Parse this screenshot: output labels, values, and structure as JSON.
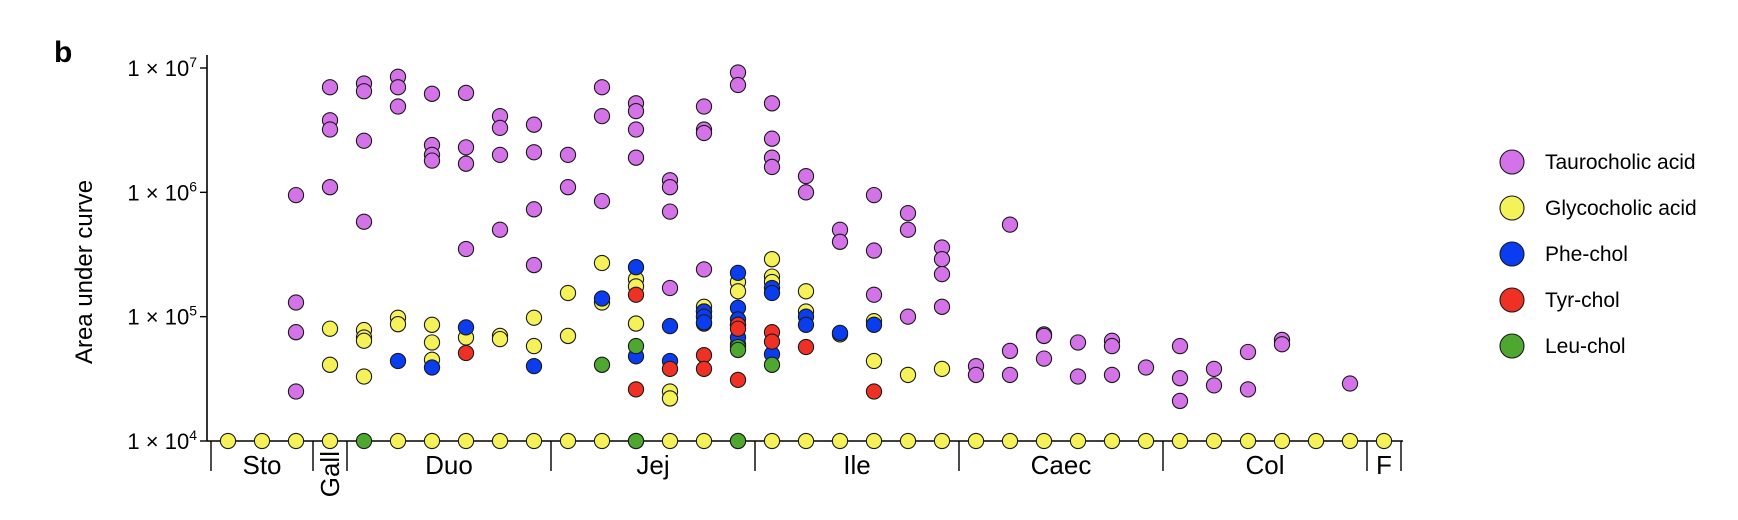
{
  "panel_letter": "b",
  "chart_data": {
    "type": "scatter",
    "ylabel": "Area under curve",
    "yscale": "log",
    "ylim": [
      10000,
      10000000
    ],
    "yticks": [
      {
        "value": 10000,
        "label": "1 × 10",
        "exp": "4"
      },
      {
        "value": 100000,
        "label": "1 × 10",
        "exp": "5"
      },
      {
        "value": 1000000,
        "label": "1 × 10",
        "exp": "6"
      },
      {
        "value": 10000000,
        "label": "1 × 10",
        "exp": "7"
      }
    ],
    "x_count": 35,
    "regions": [
      {
        "label": "Sto",
        "start": 0,
        "end": 2
      },
      {
        "label": "Gall",
        "start": 3,
        "end": 3
      },
      {
        "label": "Duo",
        "start": 4,
        "end": 9
      },
      {
        "label": "Jej",
        "start": 10,
        "end": 15
      },
      {
        "label": "Ile",
        "start": 16,
        "end": 21
      },
      {
        "label": "Caec",
        "start": 22,
        "end": 27
      },
      {
        "label": "Col",
        "start": 28,
        "end": 33
      },
      {
        "label": "F",
        "start": 34,
        "end": 34
      }
    ],
    "legend_position": "right",
    "series": [
      {
        "name": "Taurocholic acid",
        "color": "#d472e8",
        "points": [
          [
            2,
            950000
          ],
          [
            2,
            130000
          ],
          [
            2,
            75000
          ],
          [
            2,
            25000
          ],
          [
            3,
            7000000
          ],
          [
            3,
            3800000
          ],
          [
            3,
            3200000
          ],
          [
            3,
            1100000
          ],
          [
            4,
            7500000
          ],
          [
            4,
            6500000
          ],
          [
            4,
            2600000
          ],
          [
            4,
            580000
          ],
          [
            5,
            8500000
          ],
          [
            5,
            7000000
          ],
          [
            5,
            4900000
          ],
          [
            6,
            6200000
          ],
          [
            6,
            2400000
          ],
          [
            6,
            2000000
          ],
          [
            6,
            1800000
          ],
          [
            7,
            6300000
          ],
          [
            7,
            2300000
          ],
          [
            7,
            1700000
          ],
          [
            7,
            350000
          ],
          [
            8,
            4100000
          ],
          [
            8,
            3300000
          ],
          [
            8,
            2000000
          ],
          [
            8,
            500000
          ],
          [
            9,
            3500000
          ],
          [
            9,
            2100000
          ],
          [
            9,
            730000
          ],
          [
            9,
            260000
          ],
          [
            10,
            2000000
          ],
          [
            10,
            1100000
          ],
          [
            11,
            7000000
          ],
          [
            11,
            4100000
          ],
          [
            11,
            850000
          ],
          [
            12,
            5200000
          ],
          [
            12,
            4500000
          ],
          [
            12,
            3200000
          ],
          [
            12,
            1900000
          ],
          [
            13,
            1250000
          ],
          [
            13,
            1100000
          ],
          [
            13,
            700000
          ],
          [
            13,
            170000
          ],
          [
            14,
            4900000
          ],
          [
            14,
            3200000
          ],
          [
            14,
            3000000
          ],
          [
            14,
            240000
          ],
          [
            15,
            9200000
          ],
          [
            15,
            7300000
          ],
          [
            16,
            5200000
          ],
          [
            16,
            2700000
          ],
          [
            16,
            1900000
          ],
          [
            16,
            1600000
          ],
          [
            17,
            1350000
          ],
          [
            17,
            1000000
          ],
          [
            18,
            500000
          ],
          [
            18,
            400000
          ],
          [
            19,
            950000
          ],
          [
            19,
            340000
          ],
          [
            19,
            150000
          ],
          [
            20,
            680000
          ],
          [
            20,
            500000
          ],
          [
            20,
            100000
          ],
          [
            21,
            360000
          ],
          [
            21,
            290000
          ],
          [
            21,
            220000
          ],
          [
            21,
            120000
          ],
          [
            22,
            40000
          ],
          [
            22,
            34000
          ],
          [
            23,
            550000
          ],
          [
            23,
            53000
          ],
          [
            23,
            34000
          ],
          [
            24,
            72000
          ],
          [
            24,
            70000
          ],
          [
            24,
            46000
          ],
          [
            25,
            62000
          ],
          [
            25,
            33000
          ],
          [
            26,
            64000
          ],
          [
            26,
            58000
          ],
          [
            26,
            34000
          ],
          [
            27,
            39000
          ],
          [
            28,
            58000
          ],
          [
            28,
            32000
          ],
          [
            28,
            21000
          ],
          [
            29,
            38000
          ],
          [
            29,
            28000
          ],
          [
            30,
            52000
          ],
          [
            30,
            26000
          ],
          [
            31,
            65000
          ],
          [
            31,
            60000
          ],
          [
            33,
            29000
          ]
        ]
      },
      {
        "name": "Glycocholic acid",
        "color": "#f5f158",
        "points": [
          [
            0,
            10000
          ],
          [
            1,
            10000
          ],
          [
            2,
            10000
          ],
          [
            3,
            80000
          ],
          [
            3,
            41000
          ],
          [
            3,
            10000
          ],
          [
            4,
            78000
          ],
          [
            4,
            68000
          ],
          [
            4,
            64000
          ],
          [
            4,
            33000
          ],
          [
            5,
            98000
          ],
          [
            5,
            87000
          ],
          [
            5,
            10000
          ],
          [
            6,
            86000
          ],
          [
            6,
            62000
          ],
          [
            6,
            45000
          ],
          [
            6,
            10000
          ],
          [
            7,
            68000
          ],
          [
            7,
            10000
          ],
          [
            8,
            70000
          ],
          [
            8,
            66000
          ],
          [
            8,
            10000
          ],
          [
            9,
            98000
          ],
          [
            9,
            58000
          ],
          [
            9,
            10000
          ],
          [
            10,
            155000
          ],
          [
            10,
            70000
          ],
          [
            10,
            10000
          ],
          [
            11,
            270000
          ],
          [
            11,
            130000
          ],
          [
            11,
            10000
          ],
          [
            12,
            200000
          ],
          [
            12,
            175000
          ],
          [
            12,
            88000
          ],
          [
            12,
            10000
          ],
          [
            13,
            25000
          ],
          [
            13,
            22000
          ],
          [
            13,
            10000
          ],
          [
            14,
            120000
          ],
          [
            14,
            110000
          ],
          [
            14,
            100000
          ],
          [
            14,
            88000
          ],
          [
            14,
            10000
          ],
          [
            15,
            190000
          ],
          [
            15,
            160000
          ],
          [
            15,
            60000
          ],
          [
            15,
            10000
          ],
          [
            16,
            290000
          ],
          [
            16,
            210000
          ],
          [
            16,
            190000
          ],
          [
            16,
            10000
          ],
          [
            17,
            160000
          ],
          [
            17,
            110000
          ],
          [
            17,
            10000
          ],
          [
            18,
            72000
          ],
          [
            18,
            10000
          ],
          [
            19,
            92000
          ],
          [
            19,
            44000
          ],
          [
            19,
            10000
          ],
          [
            20,
            34000
          ],
          [
            20,
            10000
          ],
          [
            21,
            38000
          ],
          [
            21,
            10000
          ],
          [
            22,
            10000
          ],
          [
            23,
            10000
          ],
          [
            24,
            10000
          ],
          [
            25,
            10000
          ],
          [
            26,
            10000
          ],
          [
            27,
            10000
          ],
          [
            28,
            10000
          ],
          [
            29,
            10000
          ],
          [
            30,
            10000
          ],
          [
            31,
            10000
          ],
          [
            32,
            10000
          ],
          [
            33,
            10000
          ],
          [
            34,
            10000
          ]
        ]
      },
      {
        "name": "Phe-chol",
        "color": "#0a3df0",
        "points": [
          [
            5,
            44000
          ],
          [
            6,
            39000
          ],
          [
            7,
            82000
          ],
          [
            9,
            40000
          ],
          [
            11,
            140000
          ],
          [
            12,
            250000
          ],
          [
            12,
            48000
          ],
          [
            13,
            84000
          ],
          [
            13,
            44000
          ],
          [
            14,
            110000
          ],
          [
            14,
            100000
          ],
          [
            14,
            90000
          ],
          [
            15,
            225000
          ],
          [
            15,
            118000
          ],
          [
            15,
            95000
          ],
          [
            15,
            86000
          ],
          [
            15,
            68000
          ],
          [
            16,
            170000
          ],
          [
            16,
            155000
          ],
          [
            16,
            50000
          ],
          [
            17,
            100000
          ],
          [
            17,
            86000
          ],
          [
            18,
            74000
          ],
          [
            19,
            86000
          ]
        ]
      },
      {
        "name": "Tyr-chol",
        "color": "#ee3124",
        "points": [
          [
            7,
            51000
          ],
          [
            12,
            150000
          ],
          [
            12,
            26000
          ],
          [
            13,
            38000
          ],
          [
            14,
            49000
          ],
          [
            14,
            38000
          ],
          [
            15,
            86000
          ],
          [
            15,
            80000
          ],
          [
            15,
            31000
          ],
          [
            16,
            75000
          ],
          [
            16,
            63000
          ],
          [
            17,
            57000
          ],
          [
            19,
            25000
          ]
        ]
      },
      {
        "name": "Leu-chol",
        "color": "#4ea830",
        "points": [
          [
            4,
            10000
          ],
          [
            11,
            41000
          ],
          [
            12,
            58000
          ],
          [
            12,
            10000
          ],
          [
            15,
            57000
          ],
          [
            15,
            54000
          ],
          [
            15,
            10000
          ],
          [
            16,
            41000
          ]
        ]
      }
    ]
  }
}
